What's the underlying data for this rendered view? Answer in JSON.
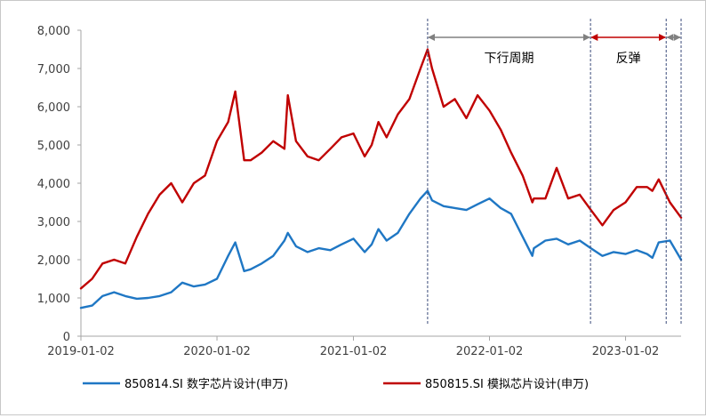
{
  "chart_data": {
    "type": "line",
    "title": "",
    "xlabel": "",
    "ylabel": "",
    "ylim": [
      0,
      8000
    ],
    "yticks": [
      0,
      1000,
      2000,
      3000,
      4000,
      5000,
      6000,
      7000,
      8000
    ],
    "ytick_labels": [
      "0",
      "1,000",
      "2,000",
      "3,000",
      "4,000",
      "5,000",
      "6,000",
      "7,000",
      "8,000"
    ],
    "xlim": [
      "2019-01-02",
      "2023-05-31"
    ],
    "xticks": [
      "2019-01-02",
      "2020-01-02",
      "2021-01-02",
      "2022-01-02",
      "2023-01-02"
    ],
    "grid": false,
    "legend": "bottom",
    "series": [
      {
        "name": "850814.SI 数字芯片设计(申万)",
        "color": "#1f77c4",
        "x": [
          "2019-01-02",
          "2019-02-01",
          "2019-03-01",
          "2019-04-01",
          "2019-05-01",
          "2019-06-01",
          "2019-07-01",
          "2019-08-01",
          "2019-09-01",
          "2019-10-01",
          "2019-11-01",
          "2019-12-01",
          "2020-01-02",
          "2020-02-01",
          "2020-02-20",
          "2020-03-15",
          "2020-04-01",
          "2020-05-01",
          "2020-06-01",
          "2020-07-01",
          "2020-07-10",
          "2020-08-01",
          "2020-09-01",
          "2020-10-01",
          "2020-11-01",
          "2020-12-01",
          "2021-01-02",
          "2021-02-01",
          "2021-02-20",
          "2021-03-10",
          "2021-04-01",
          "2021-05-01",
          "2021-06-01",
          "2021-07-01",
          "2021-07-20",
          "2021-08-01",
          "2021-09-01",
          "2021-10-01",
          "2021-11-01",
          "2021-12-01",
          "2022-01-02",
          "2022-02-01",
          "2022-03-01",
          "2022-04-01",
          "2022-04-27",
          "2022-05-01",
          "2022-06-01",
          "2022-07-01",
          "2022-08-01",
          "2022-09-01",
          "2022-10-01",
          "2022-11-01",
          "2022-12-01",
          "2023-01-02",
          "2023-02-01",
          "2023-03-01",
          "2023-03-15",
          "2023-04-01",
          "2023-05-01",
          "2023-05-31"
        ],
        "values": [
          740,
          800,
          1050,
          1150,
          1050,
          980,
          1000,
          1050,
          1150,
          1400,
          1300,
          1350,
          1500,
          2100,
          2450,
          1700,
          1750,
          1900,
          2100,
          2500,
          2700,
          2350,
          2200,
          2300,
          2250,
          2400,
          2550,
          2200,
          2400,
          2800,
          2500,
          2700,
          3200,
          3600,
          3800,
          3550,
          3400,
          3350,
          3300,
          3450,
          3600,
          3350,
          3200,
          2600,
          2100,
          2300,
          2500,
          2550,
          2400,
          2500,
          2300,
          2100,
          2200,
          2150,
          2250,
          2150,
          2050,
          2450,
          2500,
          2000
        ]
      },
      {
        "name": "850815.SI 模拟芯片设计(申万)",
        "color": "#c00000",
        "x": [
          "2019-01-02",
          "2019-02-01",
          "2019-03-01",
          "2019-04-01",
          "2019-05-01",
          "2019-06-01",
          "2019-07-01",
          "2019-08-01",
          "2019-09-01",
          "2019-10-01",
          "2019-11-01",
          "2019-12-01",
          "2020-01-02",
          "2020-02-01",
          "2020-02-20",
          "2020-03-15",
          "2020-04-01",
          "2020-05-01",
          "2020-06-01",
          "2020-07-01",
          "2020-07-10",
          "2020-08-01",
          "2020-09-01",
          "2020-10-01",
          "2020-11-01",
          "2020-12-01",
          "2021-01-02",
          "2021-02-01",
          "2021-02-20",
          "2021-03-10",
          "2021-04-01",
          "2021-05-01",
          "2021-06-01",
          "2021-07-01",
          "2021-07-20",
          "2021-08-01",
          "2021-09-01",
          "2021-10-01",
          "2021-11-01",
          "2021-12-01",
          "2022-01-02",
          "2022-02-01",
          "2022-03-01",
          "2022-04-01",
          "2022-04-27",
          "2022-05-01",
          "2022-06-01",
          "2022-07-01",
          "2022-08-01",
          "2022-09-01",
          "2022-10-01",
          "2022-11-01",
          "2022-12-01",
          "2023-01-02",
          "2023-02-01",
          "2023-03-01",
          "2023-03-15",
          "2023-04-01",
          "2023-05-01",
          "2023-05-31"
        ],
        "values": [
          1250,
          1500,
          1900,
          2000,
          1900,
          2600,
          3200,
          3700,
          4000,
          3500,
          4000,
          4200,
          5100,
          5600,
          6400,
          4600,
          4600,
          4800,
          5100,
          4900,
          6300,
          5100,
          4700,
          4600,
          4900,
          5200,
          5300,
          4700,
          5000,
          5600,
          5200,
          5800,
          6200,
          7000,
          7500,
          7000,
          6000,
          6200,
          5700,
          6300,
          5900,
          5400,
          4800,
          4200,
          3500,
          3600,
          3600,
          4400,
          3600,
          3700,
          3300,
          2900,
          3300,
          3500,
          3900,
          3900,
          3800,
          4100,
          3500,
          3100
        ]
      }
    ],
    "annotations": {
      "vlines": [
        "2021-07-20",
        "2022-09-30",
        "2023-04-21",
        "2023-05-31"
      ],
      "arrows": [
        {
          "label": "下行周期",
          "from": "2021-07-20",
          "to": "2022-09-30",
          "color": "#808080"
        },
        {
          "label": "反弹",
          "from": "2022-09-30",
          "to": "2023-04-21",
          "color": "#c00000"
        },
        {
          "label": "",
          "from": "2023-04-21",
          "to": "2023-05-31",
          "color": "#808080"
        }
      ]
    }
  }
}
